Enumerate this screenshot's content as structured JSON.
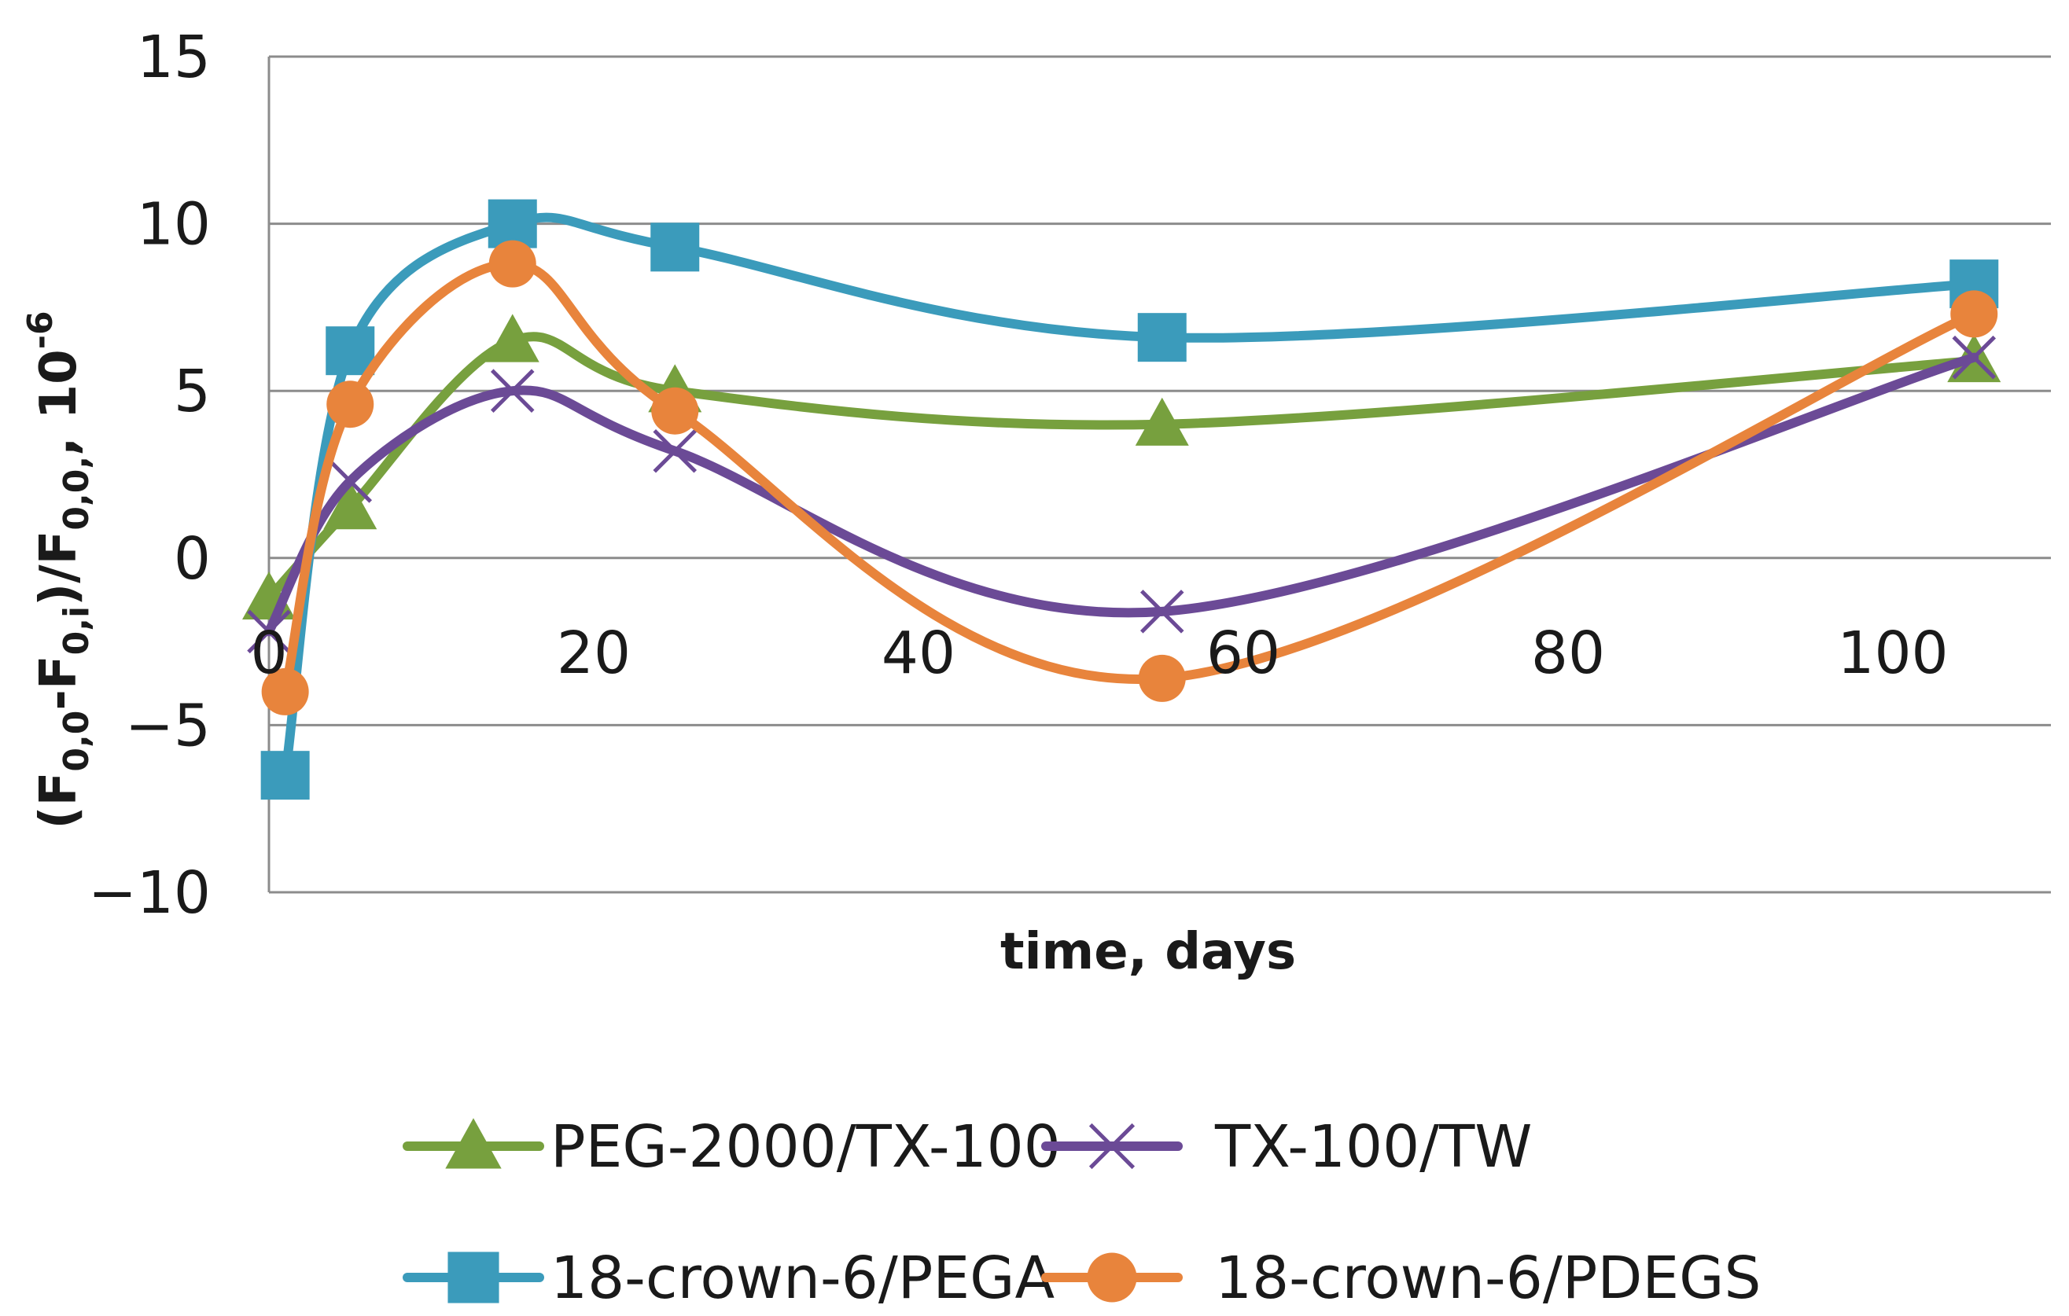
{
  "chart_data": {
    "type": "line",
    "smooth": true,
    "xlabel": "time, days",
    "ylabel": {
      "open": "(F",
      "sub1": "0,0",
      "minus": "-F",
      "sub2": "0,i",
      "mid": ")/F",
      "sub3": "0,0,",
      "tail": ", 10",
      "sup": "-6"
    },
    "xlim": [
      0,
      110
    ],
    "ylim": [
      -10,
      15
    ],
    "xticks": [
      0,
      20,
      40,
      60,
      80,
      100
    ],
    "yticks": [
      15,
      10,
      5,
      0,
      -5,
      -10
    ],
    "ytick_labels": [
      "15",
      "10",
      "5",
      "0",
      "−5",
      "−10"
    ],
    "grid": true,
    "legend_position": "bottom",
    "series": [
      {
        "name": "PEG-2000/TX-100",
        "color": "#77A03E",
        "marker": "triangle",
        "x": [
          0,
          5,
          15,
          25,
          55,
          105
        ],
        "y": [
          -1.2,
          1.5,
          6.5,
          5.0,
          4.0,
          5.9
        ]
      },
      {
        "name": "TX-100/TW",
        "color": "#6B4A96",
        "marker": "x",
        "x": [
          0,
          5,
          15,
          25,
          55,
          105
        ],
        "y": [
          -2.2,
          2.3,
          5.0,
          3.2,
          -1.6,
          6.0
        ]
      },
      {
        "name": "18-crown-6/PEGA",
        "color": "#3B9BBB",
        "marker": "square",
        "x": [
          1,
          5,
          15,
          25,
          55,
          105
        ],
        "y": [
          -6.5,
          6.2,
          10.0,
          9.3,
          6.6,
          8.2
        ]
      },
      {
        "name": "18-crown-6/PDEGS",
        "color": "#E8843C",
        "marker": "circle",
        "x": [
          1,
          5,
          15,
          25,
          55,
          105
        ],
        "y": [
          -4.0,
          4.6,
          8.8,
          4.4,
          -3.6,
          7.3
        ]
      }
    ]
  }
}
